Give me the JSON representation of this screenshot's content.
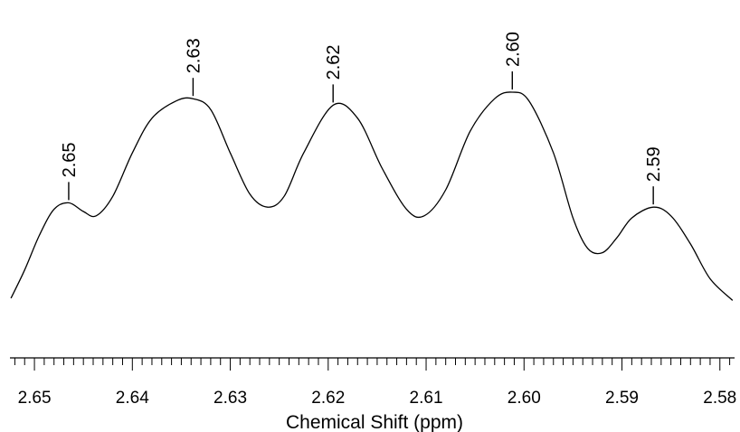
{
  "chart_data": {
    "type": "line",
    "title": "",
    "xlabel": "Chemical Shift (ppm)",
    "ylabel": "",
    "x_reversed": true,
    "xlim": [
      2.6525,
      2.5785
    ],
    "ylim": [
      0,
      1
    ],
    "grid": false,
    "legend": "none",
    "tick_labels": [
      "2.65",
      "2.64",
      "2.63",
      "2.62",
      "2.61",
      "2.60",
      "2.59",
      "2.58"
    ],
    "tick_values": [
      2.65,
      2.64,
      2.63,
      2.62,
      2.61,
      2.6,
      2.59,
      2.58
    ],
    "minor_tick_step": 0.001,
    "peaks": [
      {
        "label": "2.65",
        "x": 2.6465,
        "y": 0.49
      },
      {
        "label": "2.63",
        "x": 2.6338,
        "y": 0.97
      },
      {
        "label": "2.62",
        "x": 2.6195,
        "y": 0.94
      },
      {
        "label": "2.60",
        "x": 2.6012,
        "y": 1.0
      },
      {
        "label": "2.59",
        "x": 2.5868,
        "y": 0.47
      }
    ],
    "series": [
      {
        "x": [
          2.6524,
          2.651,
          2.6495,
          2.648,
          2.6465,
          2.645,
          2.6437,
          2.642,
          2.64,
          2.638,
          2.6355,
          2.6338,
          2.632,
          2.63,
          2.628,
          2.6262,
          2.6245,
          2.6225,
          2.6195,
          2.617,
          2.6145,
          2.612,
          2.6102,
          2.608,
          2.6055,
          2.603,
          2.6012,
          2.5995,
          2.597,
          2.595,
          2.5935,
          2.592,
          2.5905,
          2.589,
          2.5868,
          2.585,
          2.583,
          2.581,
          2.5787
        ],
        "y": [
          0.05,
          0.18,
          0.34,
          0.46,
          0.49,
          0.45,
          0.43,
          0.52,
          0.72,
          0.88,
          0.96,
          0.97,
          0.92,
          0.72,
          0.53,
          0.47,
          0.52,
          0.72,
          0.94,
          0.88,
          0.65,
          0.46,
          0.43,
          0.55,
          0.82,
          0.97,
          1.0,
          0.96,
          0.72,
          0.42,
          0.28,
          0.26,
          0.33,
          0.42,
          0.47,
          0.43,
          0.3,
          0.14,
          0.04
        ]
      }
    ]
  }
}
